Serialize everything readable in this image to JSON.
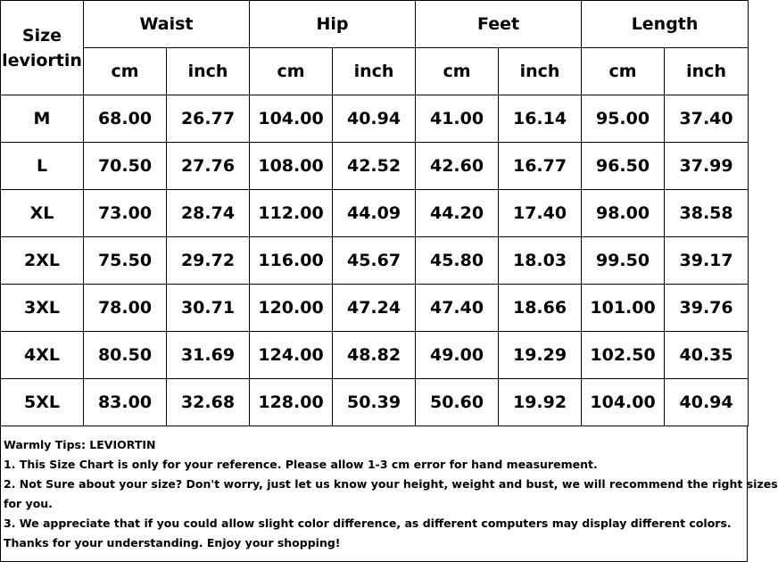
{
  "table": {
    "size_header": [
      "Size",
      "leviortin"
    ],
    "groups": [
      "Waist",
      "Hip",
      "Feet",
      "Length"
    ],
    "units": [
      "cm",
      "inch"
    ],
    "rows": [
      {
        "size": "M",
        "values": [
          "68.00",
          "26.77",
          "104.00",
          "40.94",
          "41.00",
          "16.14",
          "95.00",
          "37.40"
        ]
      },
      {
        "size": "L",
        "values": [
          "70.50",
          "27.76",
          "108.00",
          "42.52",
          "42.60",
          "16.77",
          "96.50",
          "37.99"
        ]
      },
      {
        "size": "XL",
        "values": [
          "73.00",
          "28.74",
          "112.00",
          "44.09",
          "44.20",
          "17.40",
          "98.00",
          "38.58"
        ]
      },
      {
        "size": "2XL",
        "values": [
          "75.50",
          "29.72",
          "116.00",
          "45.67",
          "45.80",
          "18.03",
          "99.50",
          "39.17"
        ]
      },
      {
        "size": "3XL",
        "values": [
          "78.00",
          "30.71",
          "120.00",
          "47.24",
          "47.40",
          "18.66",
          "101.00",
          "39.76"
        ]
      },
      {
        "size": "4XL",
        "values": [
          "80.50",
          "31.69",
          "124.00",
          "48.82",
          "49.00",
          "19.29",
          "102.50",
          "40.35"
        ]
      },
      {
        "size": "5XL",
        "values": [
          "83.00",
          "32.68",
          "128.00",
          "50.39",
          "50.60",
          "19.92",
          "104.00",
          "40.94"
        ]
      }
    ]
  },
  "tips": {
    "lines": [
      "Warmly Tips: LEVIORTIN",
      "1. This Size Chart is only for your reference. Please allow 1-3 cm error for hand measurement.",
      "2. Not Sure about your size? Don't worry, just let us know your height, weight and bust, we will recommend the right sizes",
      "for you.",
      "3. We appreciate that if you could allow slight color difference, as different computers may display different colors.",
      "Thanks for your understanding. Enjoy your shopping!"
    ]
  }
}
